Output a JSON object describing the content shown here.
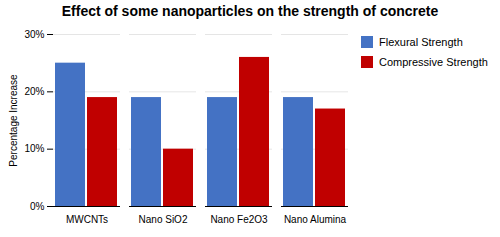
{
  "chart_data": {
    "type": "bar",
    "title": "Effect of some nanoparticles on the strength of concrete",
    "categories": [
      "MWCNTs",
      "Nano SiO2",
      "Nano Fe2O3",
      "Nano Alumina"
    ],
    "series": [
      {
        "name": "Flexural Strength",
        "color": "#4472C4",
        "values": [
          25,
          19,
          19,
          19
        ]
      },
      {
        "name": "Compressive Strength",
        "color": "#C00000",
        "values": [
          19,
          10,
          26,
          17
        ]
      }
    ],
    "ylabel": "Percentage Increase",
    "ylim": [
      0,
      30
    ],
    "yticks": [
      {
        "value": 0,
        "label": "0%"
      },
      {
        "value": 10,
        "label": "10%"
      },
      {
        "value": 20,
        "label": "20%"
      },
      {
        "value": 30,
        "label": "30%"
      }
    ],
    "grid": true,
    "legend": "right"
  }
}
